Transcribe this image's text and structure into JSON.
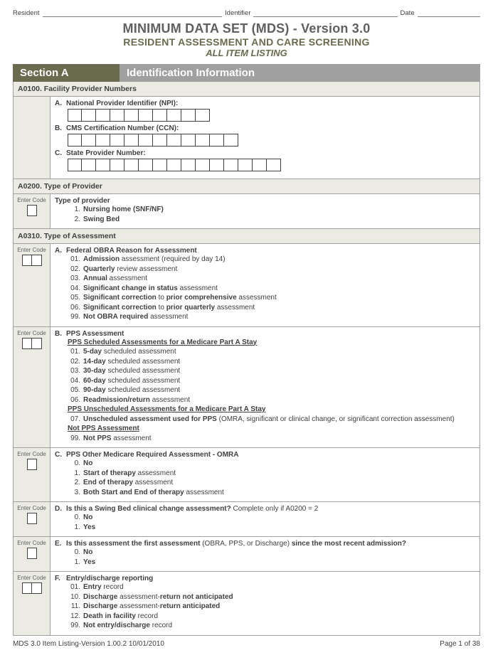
{
  "header": {
    "resident": "Resident",
    "identifier": "Identifier",
    "date": "Date"
  },
  "title": {
    "main": "MINIMUM DATA SET (MDS) - Version 3.0",
    "sub": "RESIDENT ASSESSMENT AND CARE SCREENING",
    "sub2": "ALL ITEM LISTING"
  },
  "section": {
    "left": "Section A",
    "right": "Identification Information"
  },
  "a0100": {
    "header": "A0100.  Facility Provider Numbers",
    "a_label": "National Provider Identifier (NPI):",
    "b_label": "CMS Certification Number (CCN):",
    "c_label": "State Provider Number:"
  },
  "a0200": {
    "header": "A0200.  Type of Provider",
    "enter_code": "Enter Code",
    "title": "Type of provider",
    "opt1": "Nursing home (SNF/NF)",
    "opt2": "Swing Bed"
  },
  "a0310": {
    "header": "A0310.  Type of Assessment",
    "enter_code": "Enter Code",
    "a": {
      "title": "Federal OBRA Reason for Assessment",
      "i01a": "Admission",
      "i01b": " assessment (required by day 14)",
      "i02a": "Quarterly",
      "i02b": " review assessment",
      "i03a": "Annual",
      "i03b": " assessment",
      "i04a": "Significant change in status",
      "i04b": " assessment",
      "i05a": "Significant correction",
      "i05b": " to ",
      "i05c": "prior comprehensive",
      "i05d": " assessment",
      "i06a": "Significant correction",
      "i06b": " to ",
      "i06c": "prior quarterly",
      "i06d": " assessment",
      "i99a": "Not OBRA required",
      "i99b": " assessment"
    },
    "b": {
      "title": "PPS Assessment",
      "sched": "PPS Scheduled Assessments for a Medicare Part A Stay",
      "i01a": "5-day",
      "i01b": " scheduled assessment",
      "i02a": "14-day",
      "i02b": " scheduled assessment",
      "i03a": "30-day",
      "i03b": " scheduled assessment",
      "i04a": "60-day",
      "i04b": " scheduled assessment",
      "i05a": "90-day",
      "i05b": " scheduled assessment",
      "i06a": "Readmission/return",
      "i06b": " assessment",
      "unsched": "PPS Unscheduled Assessments for a Medicare Part A Stay",
      "i07a": "Unscheduled assessment used for PPS",
      "i07b": " (OMRA, significant or clinical change, or significant correction assessment)",
      "notpps": "Not PPS Assessment",
      "i99a": "Not PPS",
      "i99b": " assessment"
    },
    "c": {
      "title": "PPS Other Medicare Required Assessment - OMRA",
      "i0": "No",
      "i1a": "Start of therapy",
      "i1b": " assessment",
      "i2a": "End of therapy",
      "i2b": " assessment",
      "i3a": "Both Start and End of therapy",
      "i3b": " assessment"
    },
    "d": {
      "title_a": "Is this a Swing Bed clinical change assessment?",
      "title_b": "  Complete only if A0200 = 2",
      "i0": "No",
      "i1": "Yes"
    },
    "e": {
      "title_a": "Is this assessment the first assessment",
      "title_b": " (OBRA, PPS, or Discharge) ",
      "title_c": "since the most recent admission?",
      "i0": "No",
      "i1": "Yes"
    },
    "f": {
      "title": "Entry/discharge reporting",
      "i01a": "Entry",
      "i01b": " record",
      "i10a": "Discharge",
      "i10b": " assessment-",
      "i10c": "return not anticipated",
      "i11a": "Discharge",
      "i11b": " assessment-",
      "i11c": "return anticipated",
      "i12a": "Death in facility",
      "i12b": " record",
      "i99a": "Not entry/discharge",
      "i99b": " record"
    }
  },
  "footer": {
    "left": "MDS 3.0 Item Listing-Version 1.00.2  10/01/2010",
    "right": "Page 1 of 38"
  }
}
